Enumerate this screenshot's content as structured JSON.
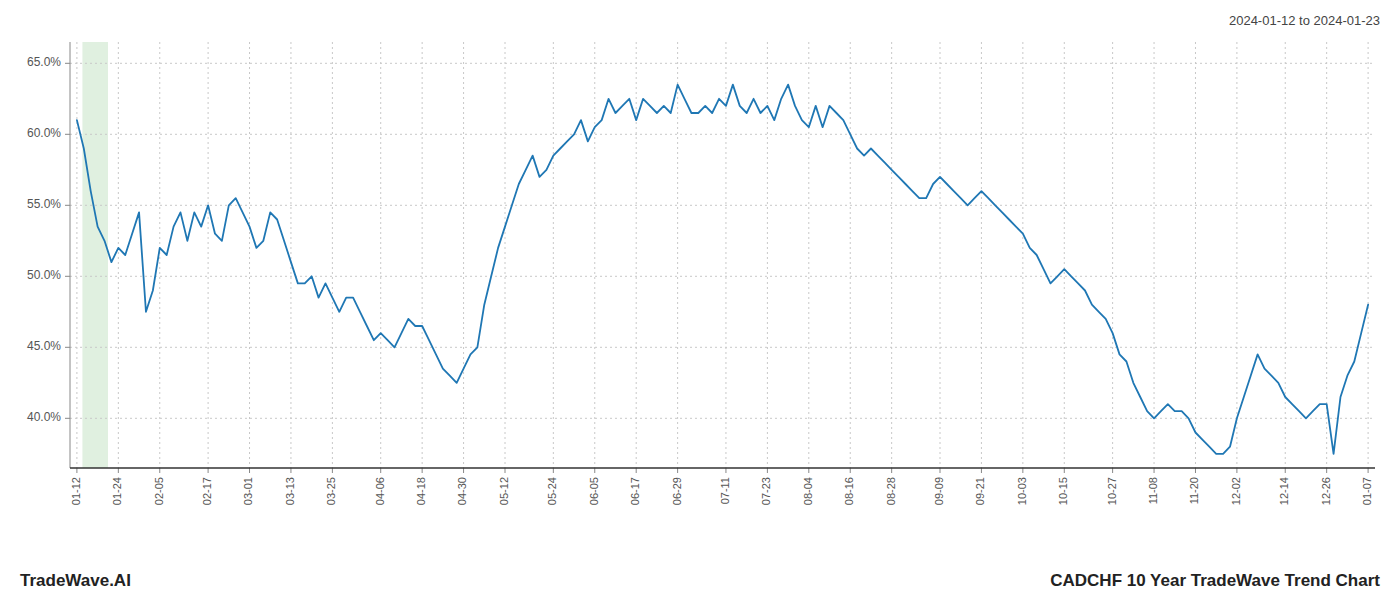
{
  "chart_data": {
    "type": "line",
    "title": "CADCHF 10 Year TradeWave Trend Chart",
    "subtitle": "2024-01-12 to 2024-01-23",
    "annotations": [
      "TradeWave.AI"
    ],
    "color": "#1f77b4",
    "grid": true,
    "highlight": {
      "from": 0.8,
      "to": 4.5,
      "color": "#e0f0e0"
    },
    "ylim": [
      36.5,
      66.5
    ],
    "yticks": [
      {
        "value": 40.0,
        "label": "40.0%"
      },
      {
        "value": 45.0,
        "label": "45.0%"
      },
      {
        "value": 50.0,
        "label": "50.0%"
      },
      {
        "value": 55.0,
        "label": "55.0%"
      },
      {
        "value": 60.0,
        "label": "60.0%"
      },
      {
        "value": 65.0,
        "label": "65.0%"
      }
    ],
    "categories": [
      "01-12",
      null,
      null,
      null,
      null,
      null,
      "01-24",
      null,
      null,
      null,
      null,
      null,
      "02-05",
      null,
      null,
      null,
      null,
      null,
      null,
      "02-17",
      null,
      null,
      null,
      null,
      null,
      "03-01",
      null,
      null,
      null,
      null,
      null,
      "03-13",
      null,
      null,
      null,
      null,
      null,
      "03-25",
      null,
      null,
      null,
      null,
      null,
      null,
      "04-06",
      null,
      null,
      null,
      null,
      null,
      "04-18",
      null,
      null,
      null,
      null,
      null,
      "04-30",
      null,
      null,
      null,
      null,
      null,
      "05-12",
      null,
      null,
      null,
      null,
      null,
      null,
      "05-24",
      null,
      null,
      null,
      null,
      null,
      "06-05",
      null,
      null,
      null,
      null,
      null,
      "06-17",
      null,
      null,
      null,
      null,
      null,
      "06-29",
      null,
      null,
      null,
      null,
      null,
      null,
      "07-11",
      null,
      null,
      null,
      null,
      null,
      "07-23",
      null,
      null,
      null,
      null,
      null,
      "08-04",
      null,
      null,
      null,
      null,
      null,
      "08-16",
      null,
      null,
      null,
      null,
      null,
      "08-28",
      null,
      null,
      null,
      null,
      null,
      null,
      "09-09",
      null,
      null,
      null,
      null,
      null,
      "09-21",
      null,
      null,
      null,
      null,
      null,
      "10-03",
      null,
      null,
      null,
      null,
      null,
      "10-15",
      null,
      null,
      null,
      null,
      null,
      null,
      "10-27",
      null,
      null,
      null,
      null,
      null,
      "11-08",
      null,
      null,
      null,
      null,
      null,
      "11-20",
      null,
      null,
      null,
      null,
      null,
      "12-02",
      null,
      null,
      null,
      null,
      null,
      null,
      "12-14",
      null,
      null,
      null,
      null,
      null,
      "12-26",
      null,
      null,
      null,
      null,
      null,
      "01-07"
    ],
    "values": [
      61.0,
      59.0,
      56.0,
      53.5,
      52.5,
      51.0,
      52.0,
      51.5,
      53.0,
      54.5,
      47.5,
      49.0,
      52.0,
      51.5,
      53.5,
      54.5,
      52.5,
      54.5,
      53.5,
      55.0,
      53.0,
      52.5,
      55.0,
      55.5,
      54.5,
      53.5,
      52.0,
      52.5,
      54.5,
      54.0,
      52.5,
      51.0,
      49.5,
      49.5,
      50.0,
      48.5,
      49.5,
      48.5,
      47.5,
      48.5,
      48.5,
      47.5,
      46.5,
      45.5,
      46.0,
      45.5,
      45.0,
      46.0,
      47.0,
      46.5,
      46.5,
      45.5,
      44.5,
      43.5,
      43.0,
      42.5,
      43.5,
      44.5,
      45.0,
      48.0,
      50.0,
      52.0,
      53.5,
      55.0,
      56.5,
      57.5,
      58.5,
      57.0,
      57.5,
      58.5,
      59.0,
      59.5,
      60.0,
      61.0,
      59.5,
      60.5,
      61.0,
      62.5,
      61.5,
      62.0,
      62.5,
      61.0,
      62.5,
      62.0,
      61.5,
      62.0,
      61.5,
      63.5,
      62.5,
      61.5,
      61.5,
      62.0,
      61.5,
      62.5,
      62.0,
      63.5,
      62.0,
      61.5,
      62.5,
      61.5,
      62.0,
      61.0,
      62.5,
      63.5,
      62.0,
      61.0,
      60.5,
      62.0,
      60.5,
      62.0,
      61.5,
      61.0,
      60.0,
      59.0,
      58.5,
      59.0,
      58.5,
      58.0,
      57.5,
      57.0,
      56.5,
      56.0,
      55.5,
      55.5,
      56.5,
      57.0,
      56.5,
      56.0,
      55.5,
      55.0,
      55.5,
      56.0,
      55.5,
      55.0,
      54.5,
      54.0,
      53.5,
      53.0,
      52.0,
      51.5,
      50.5,
      49.5,
      50.0,
      50.5,
      50.0,
      49.5,
      49.0,
      48.0,
      47.5,
      47.0,
      46.0,
      44.5,
      44.0,
      42.5,
      41.5,
      40.5,
      40.0,
      40.5,
      41.0,
      40.5,
      40.5,
      40.0,
      39.0,
      38.5,
      38.0,
      37.5,
      37.5,
      38.0,
      40.0,
      41.5,
      43.0,
      44.5,
      43.5,
      43.0,
      42.5,
      41.5,
      41.0,
      40.5,
      40.0,
      40.5,
      41.0,
      41.0,
      37.5,
      41.5,
      43.0,
      44.0,
      46.0,
      48.0
    ]
  }
}
